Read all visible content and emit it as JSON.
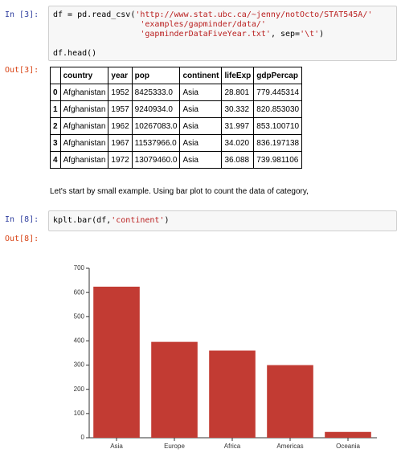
{
  "cell_in_3": {
    "prompt": "In [3]:",
    "lines": [
      [
        "df = pd.read_csv(",
        "'http://www.stat.ubc.ca/~jenny/notOcto/STAT545A/'"
      ],
      [
        "                  ",
        "'examples/gapminder/data/'"
      ],
      [
        "                  ",
        "'gapminderDataFiveYear.txt'",
        ", sep=",
        "'\\t'",
        ")"
      ],
      [
        "df.head()"
      ]
    ]
  },
  "cell_out_3": {
    "prompt": "Out[3]:",
    "table": {
      "header": [
        "",
        "country",
        "year",
        "pop",
        "continent",
        "lifeExp",
        "gdpPercap"
      ],
      "rows": [
        [
          "0",
          "Afghanistan",
          "1952",
          "8425333.0",
          "Asia",
          "28.801",
          "779.445314"
        ],
        [
          "1",
          "Afghanistan",
          "1957",
          "9240934.0",
          "Asia",
          "30.332",
          "820.853030"
        ],
        [
          "2",
          "Afghanistan",
          "1962",
          "10267083.0",
          "Asia",
          "31.997",
          "853.100710"
        ],
        [
          "3",
          "Afghanistan",
          "1967",
          "11537966.0",
          "Asia",
          "34.020",
          "836.197138"
        ],
        [
          "4",
          "Afghanistan",
          "1972",
          "13079460.0",
          "Asia",
          "36.088",
          "739.981106"
        ]
      ]
    }
  },
  "markdown": "Let's start by small example. Using bar plot to count the data of category,",
  "cell_in_8": {
    "prompt": "In [8]:",
    "lines": [
      [
        "kplt.bar(df,",
        "'continent'",
        ")"
      ]
    ]
  },
  "cell_out_8": {
    "prompt": "Out[8]:"
  },
  "chart_data": {
    "type": "bar",
    "categories": [
      "Asia",
      "Europe",
      "Africa",
      "Americas",
      "Oceania"
    ],
    "values": [
      624,
      396,
      360,
      300,
      24
    ],
    "color": "#c23b33",
    "ylim": [
      0,
      700
    ],
    "yticks": [
      0,
      100,
      200,
      300,
      400,
      500,
      600,
      700
    ]
  }
}
